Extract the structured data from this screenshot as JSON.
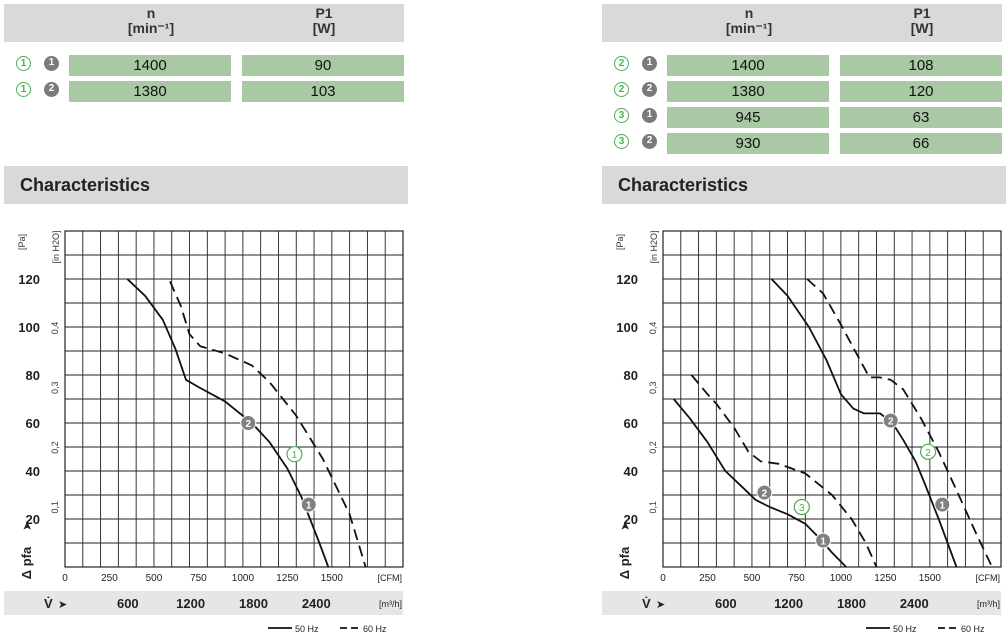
{
  "panels": [
    {
      "table": {
        "n_label": "n",
        "n_unit": "[min⁻¹]",
        "p_label": "P1",
        "p_unit": "[W]",
        "rows": [
          {
            "curve": "1",
            "speed": "1",
            "n": "1400",
            "p": "90"
          },
          {
            "curve": "1",
            "speed": "2",
            "n": "1380",
            "p": "103"
          }
        ]
      },
      "section_title": "Characteristics"
    },
    {
      "table": {
        "n_label": "n",
        "n_unit": "[min⁻¹]",
        "p_label": "P1",
        "p_unit": "[W]",
        "rows": [
          {
            "curve": "2",
            "speed": "1",
            "n": "1400",
            "p": "108"
          },
          {
            "curve": "2",
            "speed": "2",
            "n": "1380",
            "p": "120"
          },
          {
            "curve": "3",
            "speed": "1",
            "n": "945",
            "p": "63"
          },
          {
            "curve": "3",
            "speed": "2",
            "n": "930",
            "p": "66"
          }
        ]
      },
      "section_title": "Characteristics"
    }
  ],
  "chart_data": [
    {
      "type": "line",
      "xlabel": "V̇",
      "ylabel": "Δ pfa",
      "y_unit": "[Pa]",
      "y2_unit": "[in H2O]",
      "x_unit_cfm": "[CFM]",
      "x_unit_m3h": "[m³/h]",
      "xlim": [
        0,
        1900
      ],
      "ylim": [
        0,
        140
      ],
      "cfm_ticks": [
        "0",
        "250",
        "500",
        "750",
        "1000",
        "1250",
        "1500"
      ],
      "m3h_ticks": [
        "600",
        "1200",
        "1800",
        "2400"
      ],
      "y_ticks": [
        "20",
        "40",
        "60",
        "80",
        "100",
        "120"
      ],
      "y2_ticks": [
        "0,1",
        "0,2",
        "0,3",
        "0,4"
      ],
      "legend": [
        "50 Hz",
        "60 Hz"
      ],
      "grid": true,
      "series": [
        {
          "name": "50 Hz",
          "dashed": false,
          "x": [
            350,
            450,
            550,
            620,
            680,
            750,
            900,
            1050,
            1150,
            1250,
            1330,
            1430,
            1480
          ],
          "y": [
            120,
            113,
            103,
            91,
            78,
            75,
            69,
            60,
            52,
            41,
            29,
            10,
            0
          ]
        },
        {
          "name": "60 Hz",
          "dashed": true,
          "x": [
            590,
            650,
            700,
            760,
            900,
            1050,
            1150,
            1300,
            1450,
            1600,
            1690
          ],
          "y": [
            119,
            109,
            97,
            92,
            89,
            84,
            77,
            63,
            45,
            22,
            0
          ]
        }
      ],
      "markers": [
        {
          "label": "2",
          "style": "filled",
          "x": 1030,
          "y": 60
        },
        {
          "label": "1",
          "style": "outline",
          "x": 1290,
          "y": 47
        },
        {
          "label": "1",
          "style": "filled",
          "x": 1370,
          "y": 26
        }
      ]
    },
    {
      "type": "line",
      "xlabel": "V̇",
      "ylabel": "Δ pfa",
      "y_unit": "[Pa]",
      "y2_unit": "[in H2O]",
      "x_unit_cfm": "[CFM]",
      "x_unit_m3h": "[m³/h]",
      "xlim": [
        0,
        1900
      ],
      "ylim": [
        0,
        140
      ],
      "cfm_ticks": [
        "0",
        "250",
        "500",
        "750",
        "1000",
        "1250",
        "1500"
      ],
      "m3h_ticks": [
        "600",
        "1200",
        "1800",
        "2400"
      ],
      "y_ticks": [
        "20",
        "40",
        "60",
        "80",
        "100",
        "120"
      ],
      "y2_ticks": [
        "0,1",
        "0,2",
        "0,3",
        "0,4"
      ],
      "legend": [
        "50 Hz",
        "60 Hz"
      ],
      "grid": true,
      "series": [
        {
          "name": "50 Hz",
          "dashed": false,
          "x": [
            610,
            700,
            820,
            920,
            1000,
            1070,
            1130,
            1220,
            1290,
            1350,
            1420,
            1470,
            1550,
            1600,
            1650
          ],
          "y": [
            120,
            113,
            100,
            86,
            72,
            66,
            64,
            64,
            60,
            53,
            44,
            35,
            20,
            10,
            0
          ]
        },
        {
          "name": "60 Hz",
          "dashed": true,
          "x": [
            810,
            900,
            1000,
            1080,
            1160,
            1220,
            1280,
            1350,
            1450,
            1550,
            1650,
            1760,
            1850
          ],
          "y": [
            120,
            114,
            101,
            90,
            79,
            79,
            78,
            74,
            62,
            48,
            32,
            14,
            0
          ]
        },
        {
          "name": "50 Hz",
          "dashed": false,
          "x": [
            60,
            150,
            250,
            350,
            450,
            520,
            600,
            700,
            800,
            880,
            950,
            1030
          ],
          "y": [
            70,
            62,
            52,
            40,
            33,
            28,
            25,
            22,
            18,
            12,
            6,
            0
          ]
        },
        {
          "name": "60 Hz",
          "dashed": true,
          "x": [
            160,
            250,
            300,
            400,
            480,
            550,
            650,
            800,
            950,
            1060,
            1140,
            1200
          ],
          "y": [
            80,
            72,
            68,
            58,
            48,
            44,
            43,
            39,
            30,
            20,
            10,
            0
          ]
        }
      ],
      "markers": [
        {
          "label": "2",
          "style": "filled",
          "x": 1280,
          "y": 61
        },
        {
          "label": "2",
          "style": "outline",
          "x": 1490,
          "y": 48
        },
        {
          "label": "1",
          "style": "filled",
          "x": 1570,
          "y": 26
        },
        {
          "label": "2",
          "style": "filled",
          "x": 570,
          "y": 31
        },
        {
          "label": "3",
          "style": "outline",
          "x": 780,
          "y": 25
        },
        {
          "label": "1",
          "style": "filled",
          "x": 900,
          "y": 11
        }
      ]
    }
  ]
}
